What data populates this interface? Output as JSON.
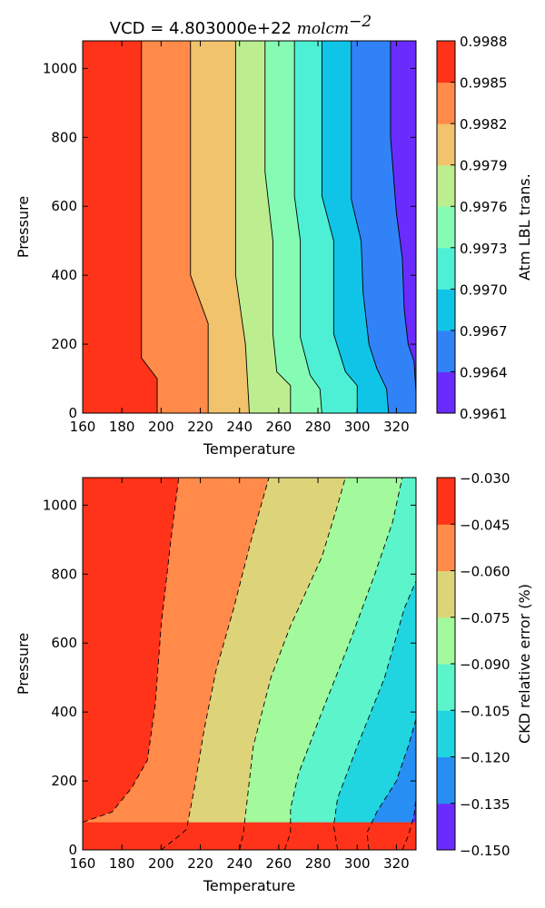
{
  "chart_data": [
    {
      "type": "contour",
      "title": "VCD = 4.803000e+22",
      "title_unit": "molcm",
      "title_unit_exponent": "−2",
      "xlabel": "Temperature",
      "ylabel": "Pressure",
      "xlim": [
        160,
        330
      ],
      "ylim": [
        0,
        1080
      ],
      "x_ticks": [
        "160",
        "180",
        "200",
        "220",
        "240",
        "260",
        "280",
        "300",
        "320"
      ],
      "y_ticks": [
        "0",
        "200",
        "400",
        "600",
        "800",
        "1000"
      ],
      "grid": false,
      "line_style": "solid",
      "colorbar": {
        "label": "Atm LBL trans.",
        "levels": [
          "0.9961",
          "0.9964",
          "0.9967",
          "0.9970",
          "0.9973",
          "0.9976",
          "0.9979",
          "0.9982",
          "0.9985",
          "0.9988"
        ],
        "colors": [
          "#6a2cfe",
          "#3182f7",
          "#10c4e8",
          "#4df0d5",
          "#86fbb4",
          "#bcee90",
          "#f0c36c",
          "#ff8a49",
          "#ff3319"
        ]
      },
      "boundaries": [
        {
          "level": "0.9985",
          "points": [
            [
              190,
              1080
            ],
            [
              190,
              160
            ],
            [
              198,
              100
            ],
            [
              198,
              0
            ]
          ]
        },
        {
          "level": "0.9982",
          "points": [
            [
              215,
              1080
            ],
            [
              215,
              400
            ],
            [
              224,
              260
            ],
            [
              224,
              0
            ]
          ]
        },
        {
          "level": "0.9979",
          "points": [
            [
              238,
              1080
            ],
            [
              238,
              400
            ],
            [
              243,
              200
            ],
            [
              245,
              0
            ]
          ]
        },
        {
          "level": "0.9976",
          "points": [
            [
              253,
              1080
            ],
            [
              253,
              700
            ],
            [
              257,
              500
            ],
            [
              257,
              230
            ],
            [
              259,
              120
            ],
            [
              266,
              80
            ],
            [
              266,
              0
            ]
          ]
        },
        {
          "level": "0.9973",
          "points": [
            [
              268,
              1080
            ],
            [
              268,
              630
            ],
            [
              271,
              500
            ],
            [
              271,
              220
            ],
            [
              276,
              110
            ],
            [
              281,
              70
            ],
            [
              282,
              0
            ]
          ]
        },
        {
          "level": "0.9970",
          "points": [
            [
              282,
              1080
            ],
            [
              282,
              630
            ],
            [
              288,
              500
            ],
            [
              288,
              230
            ],
            [
              294,
              120
            ],
            [
              300,
              80
            ],
            [
              300,
              0
            ]
          ]
        },
        {
          "level": "0.9967",
          "points": [
            [
              297,
              1080
            ],
            [
              297,
              620
            ],
            [
              302,
              500
            ],
            [
              303,
              350
            ],
            [
              306,
              200
            ],
            [
              310,
              130
            ],
            [
              315,
              70
            ],
            [
              316,
              0
            ]
          ]
        },
        {
          "level": "0.9964",
          "points": [
            [
              317,
              1080
            ],
            [
              317,
              800
            ],
            [
              320,
              580
            ],
            [
              323,
              450
            ],
            [
              324,
              300
            ],
            [
              326,
              200
            ],
            [
              329,
              150
            ],
            [
              330,
              60
            ]
          ]
        }
      ]
    },
    {
      "type": "contour",
      "xlabel": "Temperature",
      "ylabel": "Pressure",
      "xlim": [
        160,
        330
      ],
      "ylim": [
        0,
        1080
      ],
      "x_ticks": [
        "160",
        "180",
        "200",
        "220",
        "240",
        "260",
        "280",
        "300",
        "320"
      ],
      "y_ticks": [
        "0",
        "200",
        "400",
        "600",
        "800",
        "1000"
      ],
      "grid": false,
      "line_style": "dashed",
      "colorbar": {
        "label": "CKD relative error (%)",
        "levels": [
          "−0.150",
          "−0.135",
          "−0.120",
          "−0.105",
          "−0.090",
          "−0.075",
          "−0.060",
          "−0.045",
          "−0.030"
        ],
        "colors": [
          "#6a2cfe",
          "#278ef3",
          "#20d5e0",
          "#5bf4cb",
          "#a2fa9c",
          "#ddd47a",
          "#ff8a49",
          "#ff3319"
        ]
      },
      "boundaries": [
        {
          "level": "−0.045",
          "points": [
            [
              160,
              80
            ],
            [
              175,
              110
            ],
            [
              185,
              180
            ],
            [
              193,
              260
            ],
            [
              197,
              420
            ],
            [
              200,
              650
            ],
            [
              205,
              900
            ],
            [
              209,
              1080
            ]
          ]
        },
        {
          "level": "−0.060",
          "points": [
            [
              200,
              0
            ],
            [
              209,
              40
            ],
            [
              213,
              60
            ],
            [
              217,
              180
            ],
            [
              222,
              350
            ],
            [
              228,
              520
            ],
            [
              237,
              700
            ],
            [
              246,
              900
            ],
            [
              255,
              1080
            ]
          ]
        },
        {
          "level": "−0.075",
          "points": [
            [
              240,
              0
            ],
            [
              242,
              50
            ],
            [
              244,
              150
            ],
            [
              247,
              300
            ],
            [
              256,
              500
            ],
            [
              266,
              650
            ],
            [
              282,
              850
            ],
            [
              290,
              1000
            ],
            [
              294,
              1080
            ]
          ]
        },
        {
          "level": "−0.090",
          "points": [
            [
              263,
              0
            ],
            [
              266,
              50
            ],
            [
              266,
              120
            ],
            [
              270,
              220
            ],
            [
              282,
              400
            ],
            [
              296,
              600
            ],
            [
              309,
              800
            ],
            [
              318,
              950
            ],
            [
              323,
              1080
            ]
          ]
        },
        {
          "level": "−0.105",
          "points": [
            [
              290,
              0
            ],
            [
              288,
              70
            ],
            [
              290,
              150
            ],
            [
              300,
              300
            ],
            [
              314,
              500
            ],
            [
              324,
              700
            ],
            [
              330,
              780
            ]
          ]
        },
        {
          "level": "−0.120",
          "points": [
            [
              306,
              0
            ],
            [
              305,
              50
            ],
            [
              310,
              110
            ],
            [
              320,
              200
            ],
            [
              326,
              300
            ],
            [
              330,
              380
            ]
          ]
        },
        {
          "level": "−0.135",
          "points": [
            [
              323,
              0
            ],
            [
              326,
              40
            ],
            [
              329,
              100
            ],
            [
              330,
              150
            ]
          ]
        }
      ]
    }
  ]
}
